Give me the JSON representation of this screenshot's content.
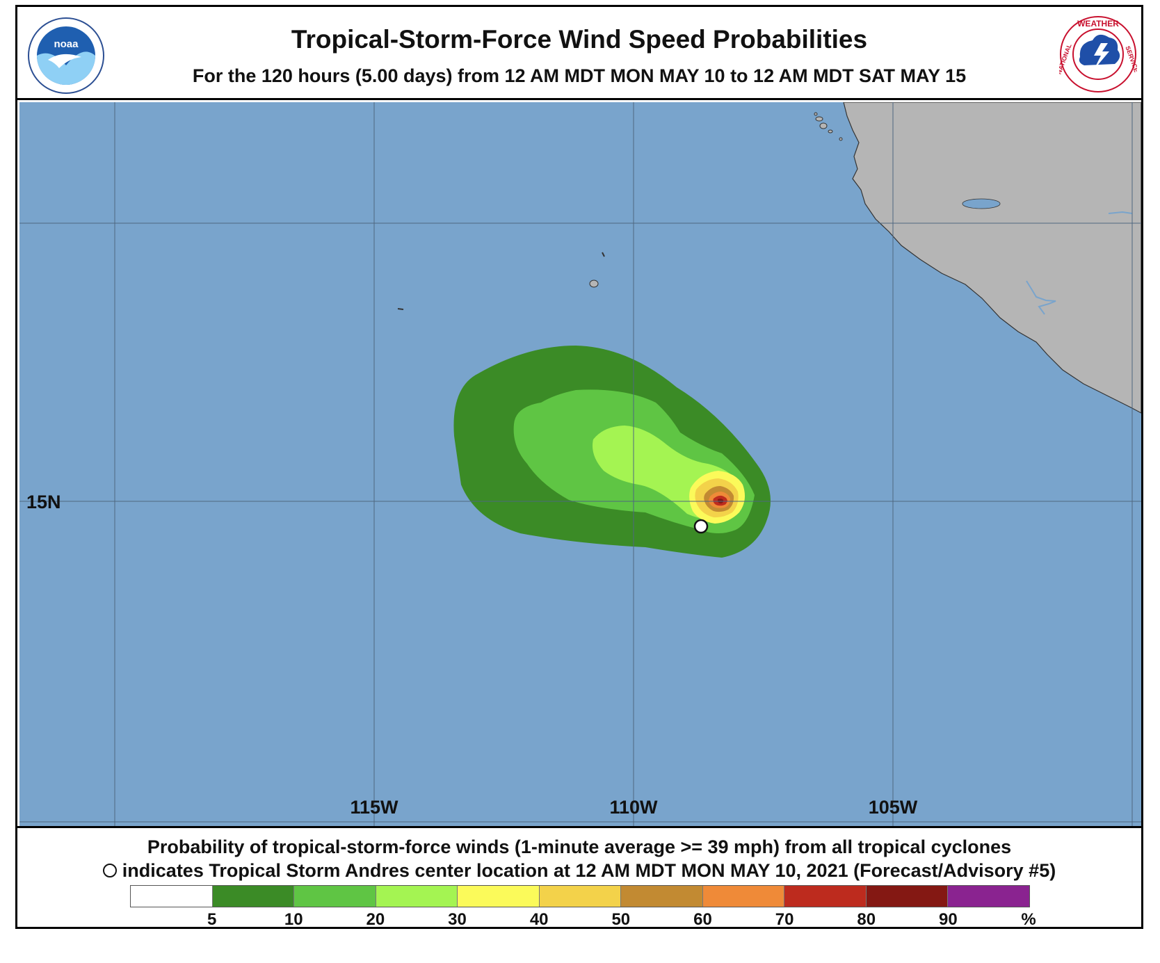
{
  "header": {
    "title": "Tropical-Storm-Force Wind Speed Probabilities",
    "subtitle": "For the 120 hours (5.00 days) from 12 AM MDT MON MAY 10 to 12 AM MDT SAT MAY 15"
  },
  "logos": {
    "noaa_text": "noaa",
    "nws_text_top": "WEATHER",
    "nws_text_left": "NATIONAL",
    "nws_text_right": "SERVICE"
  },
  "map": {
    "lat_labels": [
      "15N"
    ],
    "lon_labels": [
      "115W",
      "110W",
      "105W"
    ],
    "colors": {
      "ocean": "#79a4cc",
      "land": "#b5b5b5",
      "grid": "#4e6780"
    },
    "storm_center": {
      "name": "Tropical Storm Andres",
      "lon": -109.0,
      "lat": 14.55
    }
  },
  "footer": {
    "line1": "Probability of tropical-storm-force winds (1-minute average >= 39 mph) from all tropical cyclones",
    "line2": "indicates Tropical Storm Andres center location at 12 AM MDT MON MAY 10, 2021 (Forecast/Advisory #5)"
  },
  "legend": {
    "unit": "%",
    "ticks": [
      "5",
      "10",
      "20",
      "30",
      "40",
      "50",
      "60",
      "70",
      "80",
      "90"
    ],
    "bins": [
      {
        "range": "<5",
        "color": "#ffffff"
      },
      {
        "range": "5-10",
        "color": "#3b8b26"
      },
      {
        "range": "10-20",
        "color": "#5fc544"
      },
      {
        "range": "20-30",
        "color": "#a4f452"
      },
      {
        "range": "30-40",
        "color": "#fbfa5a"
      },
      {
        "range": "40-50",
        "color": "#f3d24a"
      },
      {
        "range": "50-60",
        "color": "#c28a32"
      },
      {
        "range": "60-70",
        "color": "#ef8a38"
      },
      {
        "range": "70-80",
        "color": "#bd2b1e"
      },
      {
        "range": "80-90",
        "color": "#841813"
      },
      {
        "range": ">90",
        "color": "#8a2390"
      }
    ]
  }
}
